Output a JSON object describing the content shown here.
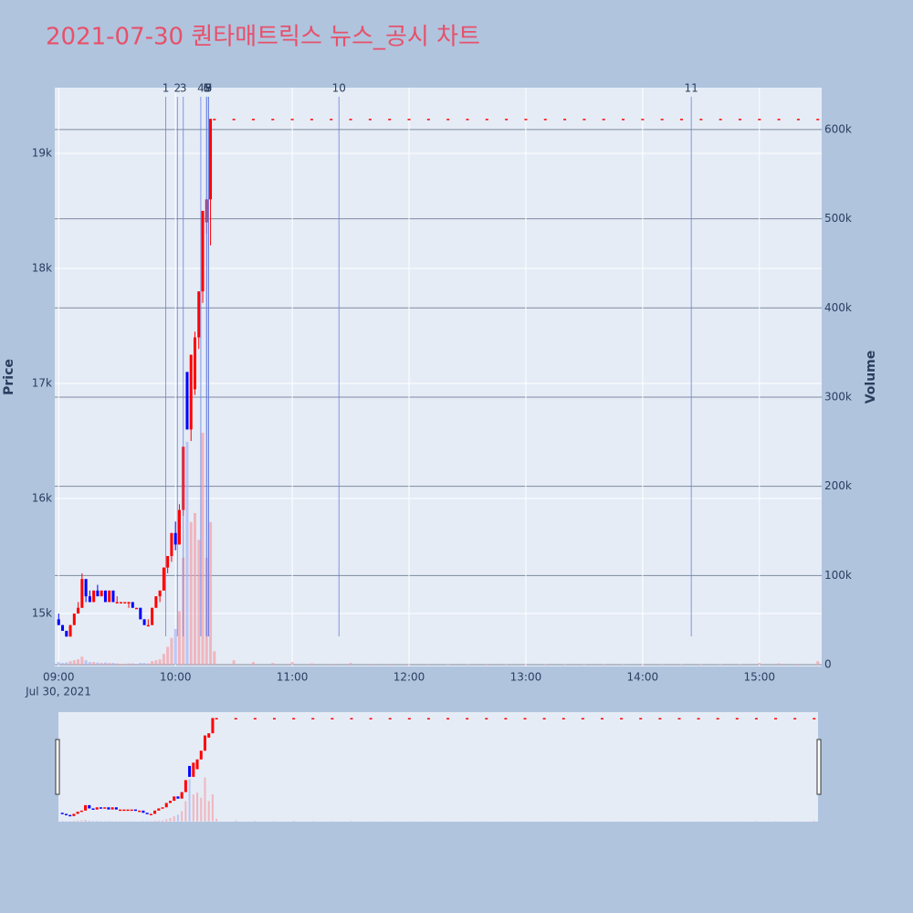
{
  "chart_data": {
    "type": "candlestick",
    "title": "2021-07-30 퀀타매트릭스 뉴스_공시 차트",
    "y_label": "Price",
    "y2_label": "Volume",
    "x_date_label": "Jul 30, 2021",
    "up_color": "#ff0000",
    "down_color": "#0000ff",
    "x": [
      "09:00",
      "09:02",
      "09:04",
      "09:06",
      "09:08",
      "09:10",
      "09:12",
      "09:14",
      "09:16",
      "09:18",
      "09:20",
      "09:22",
      "09:24",
      "09:26",
      "09:28",
      "09:30",
      "09:32",
      "09:34",
      "09:36",
      "09:38",
      "09:40",
      "09:42",
      "09:44",
      "09:46",
      "09:48",
      "09:50",
      "09:52",
      "09:54",
      "09:56",
      "09:58",
      "10:00",
      "10:02",
      "10:04",
      "10:06",
      "10:08",
      "10:10",
      "10:12",
      "10:14",
      "10:16",
      "10:18",
      "10:20",
      "10:30",
      "10:40",
      "10:50",
      "11:00",
      "11:10",
      "11:20",
      "11:30",
      "11:40",
      "11:50",
      "12:00",
      "12:10",
      "12:20",
      "12:30",
      "12:40",
      "12:50",
      "13:00",
      "13:10",
      "13:20",
      "13:30",
      "13:40",
      "13:50",
      "14:00",
      "14:10",
      "14:20",
      "14:30",
      "14:40",
      "14:50",
      "15:00",
      "15:10",
      "15:20",
      "15:30"
    ],
    "open": [
      14950,
      14900,
      14850,
      14800,
      14900,
      15000,
      15050,
      15300,
      15150,
      15100,
      15200,
      15150,
      15200,
      15100,
      15200,
      15100,
      15100,
      15100,
      15100,
      15100,
      15050,
      15050,
      14950,
      14900,
      14900,
      15050,
      15150,
      15200,
      15400,
      15500,
      15700,
      15600,
      15900,
      17100,
      16600,
      16950,
      17400,
      17800,
      18400,
      18600,
      19300,
      19300,
      19300,
      19300,
      19300,
      19300,
      19300,
      19300,
      19300,
      19300,
      19300,
      19300,
      19300,
      19300,
      19300,
      19300,
      19300,
      19300,
      19300,
      19300,
      19300,
      19300,
      19300,
      19300,
      19300,
      19300,
      19300,
      19300,
      19300,
      19300,
      19300,
      19300
    ],
    "high": [
      15000,
      14900,
      14850,
      14900,
      15000,
      15100,
      15350,
      15300,
      15200,
      15200,
      15250,
      15200,
      15200,
      15200,
      15200,
      15150,
      15100,
      15100,
      15100,
      15100,
      15050,
      15050,
      14950,
      14950,
      15050,
      15150,
      15200,
      15400,
      15500,
      15700,
      15800,
      15950,
      16450,
      17100,
      17250,
      17450,
      17800,
      18500,
      18600,
      19300,
      19300,
      19300,
      19300,
      19300,
      19300,
      19300,
      19300,
      19300,
      19300,
      19300,
      19300,
      19300,
      19300,
      19300,
      19300,
      19300,
      19300,
      19300,
      19300,
      19300,
      19300,
      19300,
      19300,
      19300,
      19300,
      19300,
      19300,
      19300,
      19300,
      19300,
      19300,
      19300
    ],
    "low": [
      14900,
      14850,
      14800,
      14800,
      14900,
      15000,
      15050,
      15100,
      15100,
      15100,
      15150,
      15150,
      15100,
      15100,
      15100,
      15100,
      15100,
      15100,
      15050,
      15050,
      15050,
      14950,
      14900,
      14900,
      14900,
      15050,
      15100,
      15200,
      15350,
      15450,
      15550,
      15600,
      15850,
      16600,
      16500,
      16900,
      17300,
      17700,
      18300,
      18200,
      19300,
      19300,
      19300,
      19300,
      19300,
      19300,
      19300,
      19300,
      19300,
      19300,
      19300,
      19300,
      19300,
      19300,
      19300,
      19300,
      19300,
      19300,
      19300,
      19300,
      19300,
      19300,
      19300,
      19300,
      19300,
      19300,
      19300,
      19300,
      19300,
      19300,
      19300,
      19300
    ],
    "close": [
      14900,
      14850,
      14800,
      14900,
      15000,
      15050,
      15300,
      15150,
      15100,
      15200,
      15150,
      15200,
      15100,
      15200,
      15100,
      15100,
      15100,
      15100,
      15100,
      15050,
      15050,
      14950,
      14900,
      14900,
      15050,
      15150,
      15200,
      15400,
      15500,
      15700,
      15600,
      15900,
      16450,
      16600,
      17250,
      17400,
      17800,
      18500,
      18600,
      19300,
      19300,
      19300,
      19300,
      19300,
      19300,
      19300,
      19300,
      19300,
      19300,
      19300,
      19300,
      19300,
      19300,
      19300,
      19300,
      19300,
      19300,
      19300,
      19300,
      19300,
      19300,
      19300,
      19300,
      19300,
      19300,
      19300,
      19300,
      19300,
      19300,
      19300,
      19300,
      19300
    ],
    "volume": [
      3000,
      2000,
      2500,
      4000,
      5000,
      6000,
      9000,
      5000,
      3000,
      3000,
      2500,
      2000,
      2500,
      2000,
      2000,
      1500,
      1000,
      1000,
      1500,
      1500,
      1000,
      2000,
      2000,
      1500,
      4000,
      5000,
      6000,
      12000,
      20000,
      30000,
      40000,
      60000,
      120000,
      250000,
      160000,
      170000,
      140000,
      260000,
      120000,
      160000,
      15000,
      5000,
      3000,
      2000,
      3000,
      1500,
      1000,
      2000,
      1000,
      1000,
      800,
      800,
      600,
      600,
      800,
      600,
      600,
      500,
      500,
      500,
      600,
      500,
      500,
      400,
      500,
      600,
      600,
      500,
      2000,
      1500,
      1000,
      4000
    ],
    "news": [
      {
        "x": "09:55",
        "label": "1"
      },
      {
        "x": "10:01",
        "label": "2"
      },
      {
        "x": "10:04",
        "label": "3"
      },
      {
        "x": "10:13",
        "label": "4"
      },
      {
        "x": "10:16",
        "label": "5"
      },
      {
        "x": "10:16",
        "label": "6"
      },
      {
        "x": "10:17",
        "label": "7"
      },
      {
        "x": "10:17",
        "label": "8"
      },
      {
        "x": "10:17",
        "label": "9"
      },
      {
        "x": "11:24",
        "label": "10"
      },
      {
        "x": "14:25",
        "label": "11"
      }
    ],
    "xlim": [
      "08:58",
      "15:32"
    ],
    "xticks": [
      "09:00",
      "10:00",
      "11:00",
      "12:00",
      "13:00",
      "14:00",
      "15:00"
    ],
    "ylim": [
      14540,
      19571
    ],
    "yticks": [
      {
        "value": 15000,
        "label": "15k"
      },
      {
        "value": 16000,
        "label": "16k"
      },
      {
        "value": 17000,
        "label": "17k"
      },
      {
        "value": 18000,
        "label": "18k"
      },
      {
        "value": 19000,
        "label": "19k"
      }
    ],
    "y2lim": [
      -2000,
      647000
    ],
    "y2ticks": [
      0,
      {
        "value": 100000,
        "label": "100k"
      },
      {
        "value": 200000,
        "label": "200k"
      },
      {
        "value": 300000,
        "label": "300k"
      },
      {
        "value": 400000,
        "label": "400k"
      },
      {
        "value": 500000,
        "label": "500k"
      },
      {
        "value": 600000,
        "label": "600k"
      }
    ],
    "grid": true
  }
}
